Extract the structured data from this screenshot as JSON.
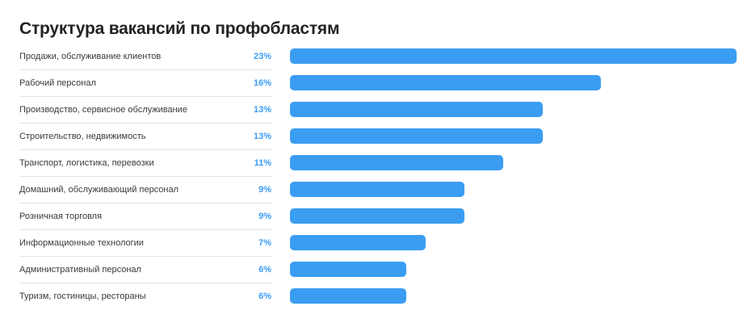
{
  "chart_data": {
    "type": "bar",
    "orientation": "horizontal",
    "title": "Структура вакансий по профобластям",
    "xlabel": "",
    "ylabel": "",
    "grid": false,
    "legend": "none",
    "value_unit": "%",
    "xlim": [
      0,
      23
    ],
    "color": "#3b9df2",
    "label_color": "#3b9df2",
    "categories": [
      "Продажи, обслуживание клиентов",
      "Рабочий персонал",
      "Производство, сервисное обслуживание",
      "Строительство, недвижимость",
      "Транспорт, логистика, перевозки",
      "Домашний, обслуживающий персонал",
      "Розничная торговля",
      "Информационные технологии",
      "Административный персонал",
      "Туризм, гостиницы, рестораны"
    ],
    "values": [
      23,
      16,
      13,
      13,
      11,
      9,
      9,
      7,
      6,
      6
    ],
    "value_labels": [
      "23%",
      "16%",
      "13%",
      "13%",
      "11%",
      "9%",
      "9%",
      "7%",
      "6%",
      "6%"
    ]
  }
}
